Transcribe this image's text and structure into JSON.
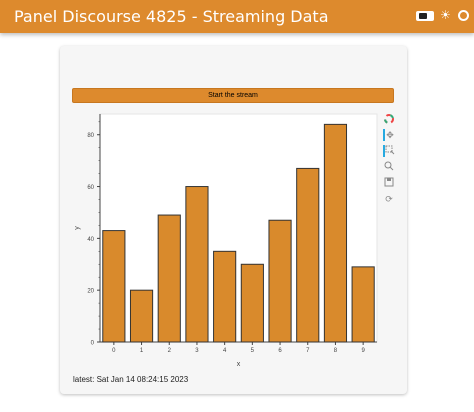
{
  "header": {
    "title": "Panel Discourse 4825 - Streaming Data",
    "icons": [
      "toggle-icon",
      "theme-sun-icon",
      "circle-icon"
    ]
  },
  "controls": {
    "start_label": "Start the stream"
  },
  "toolbar": {
    "tools": [
      "bokeh-logo-icon",
      "pan-icon",
      "box-zoom-icon",
      "wheel-zoom-icon",
      "save-icon",
      "reset-icon"
    ]
  },
  "status": {
    "latest": "latest: Sat Jan 14 08:24:15 2023"
  },
  "colors": {
    "accent": "#dd8a2d",
    "bar_fill": "#d98a2c",
    "bar_stroke": "#333333"
  },
  "chart_data": {
    "type": "bar",
    "categories": [
      "0",
      "1",
      "2",
      "3",
      "4",
      "5",
      "6",
      "7",
      "8",
      "9"
    ],
    "values": [
      43,
      20,
      49,
      60,
      35,
      30,
      47,
      67,
      84,
      29
    ],
    "xlabel": "x",
    "ylabel": "y",
    "ylim": [
      0,
      88
    ],
    "yticks": [
      0,
      20,
      40,
      60,
      80
    ],
    "grid": false
  }
}
